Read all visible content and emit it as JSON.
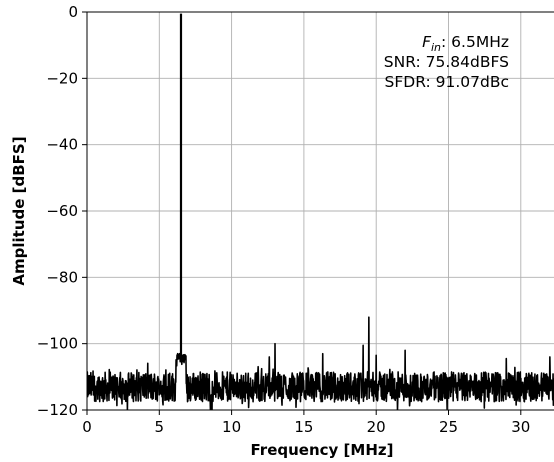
{
  "chart_data": {
    "type": "line",
    "title": "",
    "xlabel": "Frequency [MHz]",
    "ylabel": "Amplitude [dBFS]",
    "xlim": [
      0,
      32.5
    ],
    "ylim": [
      -120,
      0
    ],
    "grid": true,
    "x_ticks": [
      0,
      5,
      10,
      15,
      20,
      25,
      30
    ],
    "x_tick_labels": [
      "0",
      "5",
      "10",
      "15",
      "20",
      "25",
      "30"
    ],
    "y_ticks": [
      0,
      -20,
      -40,
      -60,
      -80,
      -100,
      -120
    ],
    "y_tick_labels": [
      "0",
      "−20",
      "−40",
      "−60",
      "−80",
      "−100",
      "−120"
    ],
    "series_color": "#000000",
    "annotations": {
      "fin_symbol": "F",
      "fin_subscript": "in",
      "fin_value": ": 6.5MHz",
      "snr": "SNR: 75.84dBFS",
      "sfdr": "SFDR: 91.07dBc"
    },
    "noise_floor": {
      "mean": -113,
      "spread": 4.5,
      "min": -120
    },
    "fundamental": {
      "x": 6.5,
      "y": -0.5
    },
    "spurs": [
      {
        "x": 6.4,
        "y": -103
      },
      {
        "x": 6.6,
        "y": -103.5
      },
      {
        "x": 12.6,
        "y": -104
      },
      {
        "x": 13.0,
        "y": -100
      },
      {
        "x": 16.3,
        "y": -103
      },
      {
        "x": 19.1,
        "y": -100.5
      },
      {
        "x": 19.5,
        "y": -92
      },
      {
        "x": 20.0,
        "y": -103.5
      },
      {
        "x": 22.0,
        "y": -102
      },
      {
        "x": 29.0,
        "y": -104.5
      },
      {
        "x": 32.0,
        "y": -104
      }
    ]
  }
}
